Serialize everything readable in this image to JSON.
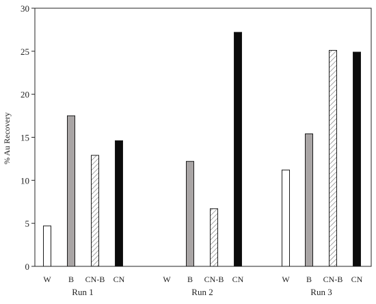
{
  "chart_data": {
    "type": "bar",
    "title": "",
    "ylabel": "% Au Recovery",
    "xlabel": "",
    "ylim": [
      0,
      30
    ],
    "yticks": [
      0,
      5,
      10,
      15,
      20,
      25,
      30
    ],
    "grid": false,
    "legend": "none",
    "groups": [
      {
        "name": "Run 1",
        "bars": [
          {
            "category": "W",
            "value": 4.7,
            "fill": "white"
          },
          {
            "category": "B",
            "value": 17.5,
            "fill": "gray"
          },
          {
            "category": "CN-B",
            "value": 12.9,
            "fill": "hatched"
          },
          {
            "category": "CN",
            "value": 14.6,
            "fill": "black"
          }
        ]
      },
      {
        "name": "Run 2",
        "bars": [
          {
            "category": "W",
            "value": 0,
            "fill": "white"
          },
          {
            "category": "B",
            "value": 12.2,
            "fill": "gray"
          },
          {
            "category": "CN-B",
            "value": 6.7,
            "fill": "hatched"
          },
          {
            "category": "CN",
            "value": 27.2,
            "fill": "black"
          }
        ]
      },
      {
        "name": "Run 3",
        "bars": [
          {
            "category": "W",
            "value": 11.2,
            "fill": "white"
          },
          {
            "category": "B",
            "value": 15.4,
            "fill": "gray"
          },
          {
            "category": "CN-B",
            "value": 25.1,
            "fill": "hatched"
          },
          {
            "category": "CN",
            "value": 24.9,
            "fill": "black"
          }
        ]
      }
    ],
    "colors": {
      "white": "#ffffff",
      "gray": "#a9a5a5",
      "black": "#0b0b0b",
      "outline": "#1a1a1a",
      "hatch": "#8c8c8c"
    }
  }
}
